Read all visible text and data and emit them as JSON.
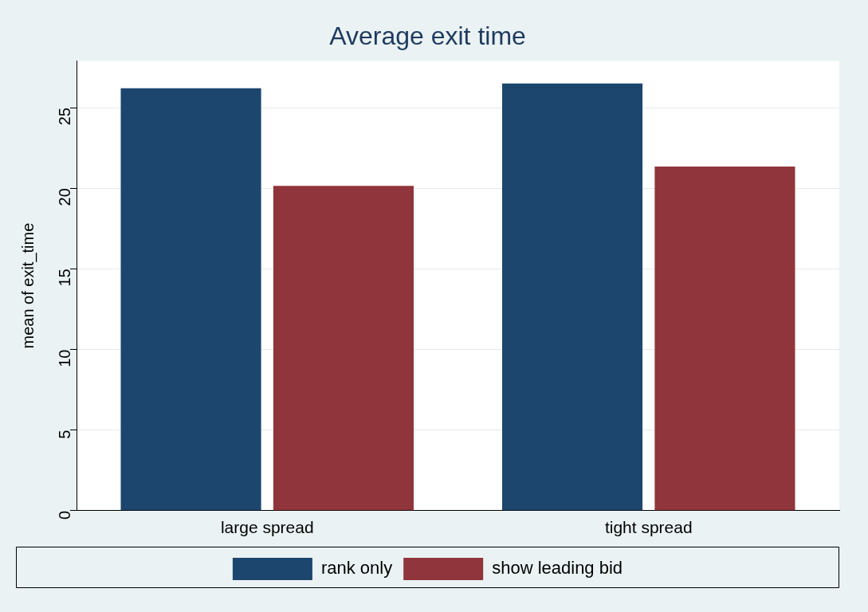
{
  "chart_data": {
    "type": "bar",
    "title": "Average exit time",
    "ylabel": "mean of exit_time",
    "categories": [
      "large spread",
      "tight spread"
    ],
    "series": [
      {
        "name": "rank only",
        "color": "#1c466e",
        "values": [
          26.2,
          26.5
        ]
      },
      {
        "name": "show leading bid",
        "color": "#90353b",
        "values": [
          20.15,
          21.35
        ]
      }
    ],
    "ylim": [
      0,
      27.9
    ],
    "yticks": [
      0,
      5,
      10,
      15,
      20,
      25
    ],
    "grid": "y",
    "legend": "bottom"
  }
}
